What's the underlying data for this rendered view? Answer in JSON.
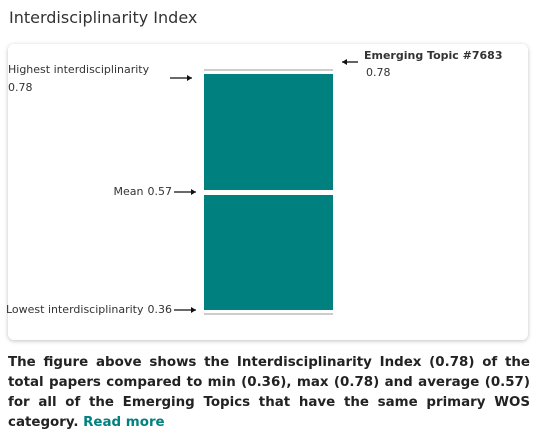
{
  "title": "Interdisciplinarity Index",
  "chart": {
    "highest": {
      "label": "Highest interdisciplinarity",
      "value": 0.78
    },
    "mean": {
      "label": "Mean",
      "value": 0.57
    },
    "lowest": {
      "label": "Lowest interdisciplinarity",
      "value": 0.36
    },
    "topic": {
      "label": "Emerging Topic #7683",
      "value": 0.78
    },
    "color": "#00817f"
  },
  "description": {
    "text": "The figure above shows the Interdisciplinarity Index (0.78) of the total papers compared to min (0.36), max (0.78) and average (0.57) for all of the Emerging Topics that have the same primary WOS category.",
    "link": "Read more"
  }
}
